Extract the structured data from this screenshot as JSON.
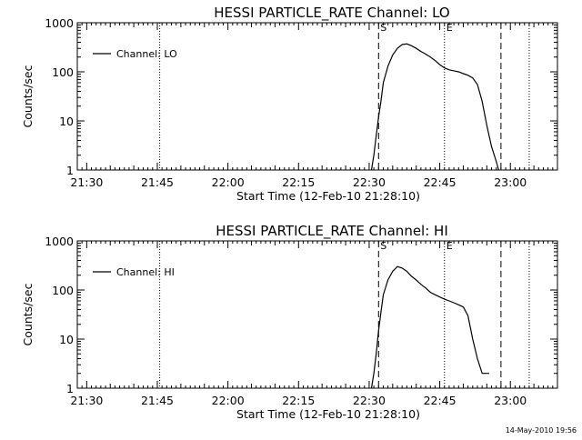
{
  "footer": {
    "stamp": "14-May-2010 19:56"
  },
  "chart_data": [
    {
      "type": "line",
      "title": "HESSI PARTICLE_RATE Channel: LO",
      "xlabel": "Start Time (12-Feb-10 21:28:10)",
      "ylabel": "Counts/sec",
      "y_scale": "log",
      "ylim": [
        1,
        1000
      ],
      "xlim": [
        "21:28",
        "23:10"
      ],
      "x_ticks": [
        "21:30",
        "21:45",
        "22:00",
        "22:15",
        "22:30",
        "22:45",
        "23:00"
      ],
      "y_ticks": [
        "1",
        "10",
        "100",
        "1000"
      ],
      "legend": {
        "position": "top-left",
        "entries": [
          "Channel: LO"
        ]
      },
      "markers": [
        {
          "time": "21:45:30",
          "style": "dotted",
          "label": ""
        },
        {
          "time": "22:32:00",
          "style": "dashed",
          "label": "S"
        },
        {
          "time": "22:46:00",
          "style": "dotted",
          "label": "E"
        },
        {
          "time": "22:58:00",
          "style": "dashed",
          "label": ""
        },
        {
          "time": "23:04:00",
          "style": "dotted",
          "label": ""
        }
      ],
      "series": [
        {
          "name": "Channel: LO",
          "x": [
            "22:30:30",
            "22:31:00",
            "22:31:30",
            "22:32:00",
            "22:32:30",
            "22:33:00",
            "22:34:00",
            "22:35:00",
            "22:36:00",
            "22:37:00",
            "22:38:00",
            "22:39:00",
            "22:40:00",
            "22:41:00",
            "22:42:00",
            "22:43:00",
            "22:44:00",
            "22:45:00",
            "22:46:00",
            "22:47:00",
            "22:48:00",
            "22:49:00",
            "22:50:00",
            "22:51:00",
            "22:52:00",
            "22:53:00",
            "22:54:00",
            "22:55:00",
            "22:56:00",
            "22:57:00",
            "22:57:30"
          ],
          "y": [
            1,
            2,
            5,
            12,
            25,
            60,
            130,
            220,
            300,
            360,
            370,
            340,
            300,
            260,
            230,
            200,
            170,
            140,
            120,
            110,
            105,
            100,
            92,
            85,
            75,
            55,
            25,
            8,
            3,
            1.5,
            1
          ]
        }
      ]
    },
    {
      "type": "line",
      "title": "HESSI PARTICLE_RATE Channel: HI",
      "xlabel": "Start Time (12-Feb-10 21:28:10)",
      "ylabel": "Counts/sec",
      "y_scale": "log",
      "ylim": [
        1,
        1000
      ],
      "xlim": [
        "21:28",
        "23:10"
      ],
      "x_ticks": [
        "21:30",
        "21:45",
        "22:00",
        "22:15",
        "22:30",
        "22:45",
        "23:00"
      ],
      "y_ticks": [
        "1",
        "10",
        "100",
        "1000"
      ],
      "legend": {
        "position": "top-left",
        "entries": [
          "Channel: HI"
        ]
      },
      "markers": [
        {
          "time": "21:45:30",
          "style": "dotted",
          "label": ""
        },
        {
          "time": "22:32:00",
          "style": "dashed",
          "label": "S"
        },
        {
          "time": "22:46:00",
          "style": "dotted",
          "label": "E"
        },
        {
          "time": "22:58:00",
          "style": "dashed",
          "label": ""
        },
        {
          "time": "23:04:00",
          "style": "dotted",
          "label": ""
        }
      ],
      "series": [
        {
          "name": "Channel: HI",
          "x": [
            "22:30:30",
            "22:31:00",
            "22:31:30",
            "22:32:00",
            "22:32:30",
            "22:33:00",
            "22:34:00",
            "22:35:00",
            "22:36:00",
            "22:37:00",
            "22:38:00",
            "22:39:00",
            "22:40:00",
            "22:41:00",
            "22:42:00",
            "22:43:00",
            "22:44:00",
            "22:45:00",
            "22:46:00",
            "22:47:00",
            "22:48:00",
            "22:49:00",
            "22:50:00",
            "22:51:00",
            "22:52:00",
            "22:53:00",
            "22:54:00",
            "22:55:00",
            "22:55:30"
          ],
          "y": [
            1,
            2,
            5,
            15,
            35,
            80,
            160,
            240,
            300,
            280,
            240,
            190,
            160,
            130,
            110,
            90,
            80,
            72,
            65,
            60,
            55,
            50,
            45,
            30,
            10,
            4,
            2,
            2,
            2
          ]
        }
      ]
    }
  ]
}
